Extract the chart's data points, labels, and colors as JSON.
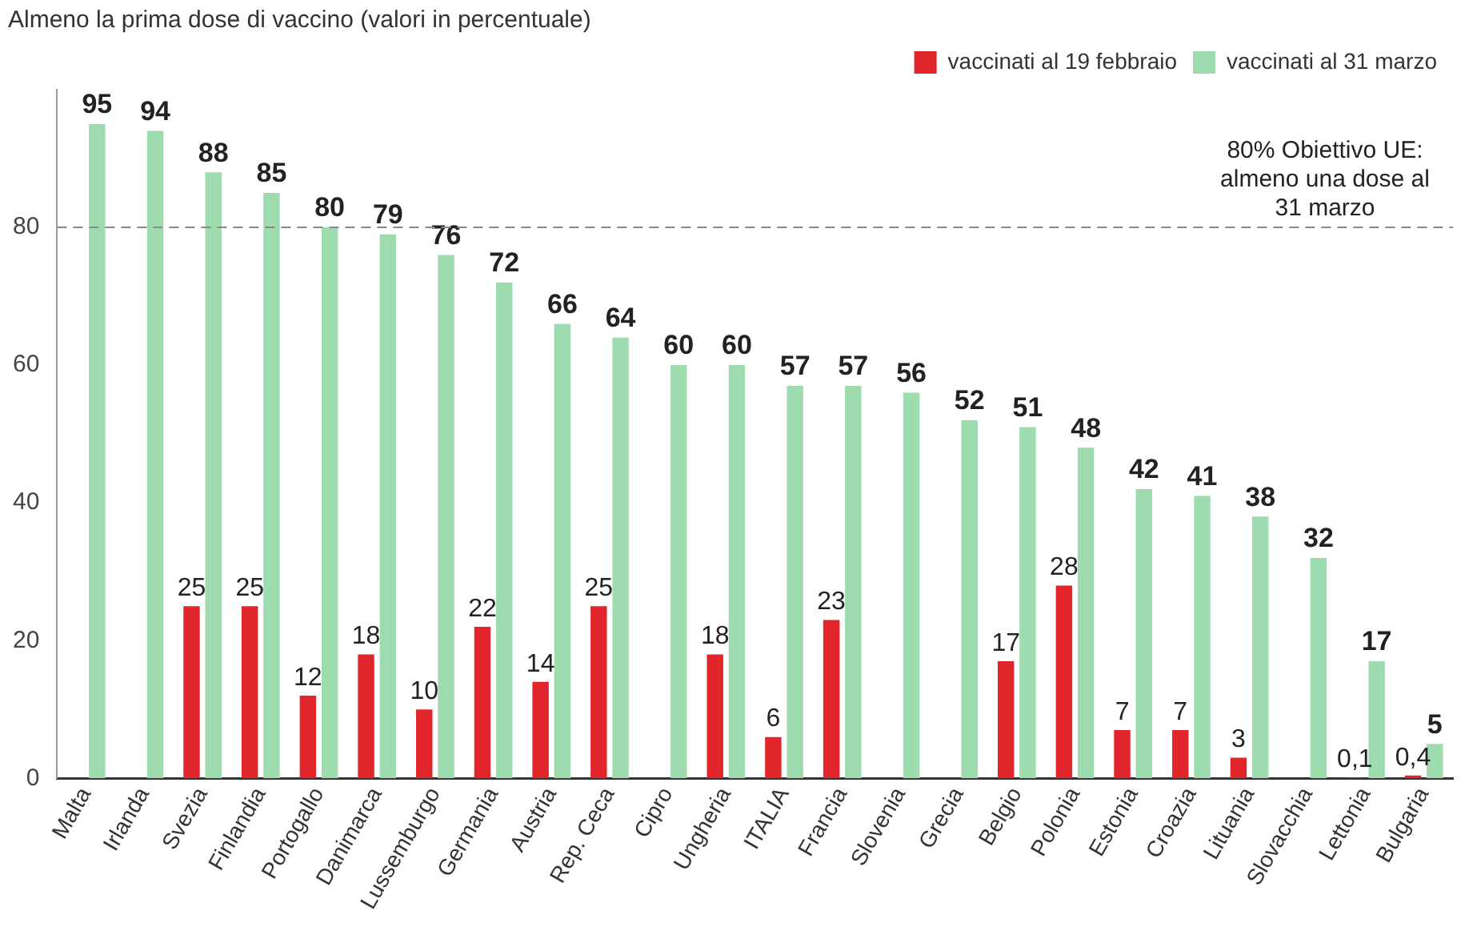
{
  "chart_data": {
    "type": "bar",
    "subtitle": "Almeno la prima dose di vaccino (valori in percentuale)",
    "categories": [
      "Malta",
      "Irlanda",
      "Svezia",
      "Finlandia",
      "Portogallo",
      "Danimarca",
      "Lussemburgo",
      "Germania",
      "Austria",
      "Rep. Ceca",
      "Cipro",
      "Ungheria",
      "ITALIA",
      "Francia",
      "Slovenia",
      "Grecia",
      "Belgio",
      "Polonia",
      "Estonia",
      "Croazia",
      "Lituania",
      "Slovacchia",
      "Lettonia",
      "Bulgaria"
    ],
    "series": [
      {
        "name": "vaccinati al 19 febbraio",
        "color": "#e0262a",
        "values": [
          null,
          null,
          25,
          25,
          12,
          18,
          10,
          22,
          14,
          25,
          null,
          18,
          6,
          23,
          null,
          null,
          17,
          28,
          7,
          7,
          3,
          null,
          0.1,
          0.4
        ],
        "value_labels": [
          null,
          null,
          "25",
          "25",
          "12",
          "18",
          "10",
          "22",
          "14",
          "25",
          null,
          "18",
          "6",
          "23",
          null,
          null,
          "17",
          "28",
          "7",
          "7",
          "3",
          null,
          "0,1",
          "0,4"
        ]
      },
      {
        "name": "vaccinati al 31 marzo",
        "color": "#9edcb0",
        "values": [
          95,
          94,
          88,
          85,
          80,
          79,
          76,
          72,
          66,
          64,
          60,
          60,
          57,
          57,
          56,
          52,
          51,
          48,
          42,
          41,
          38,
          32,
          17,
          5
        ],
        "value_labels": [
          "95",
          "94",
          "88",
          "85",
          "80",
          "79",
          "76",
          "72",
          "66",
          "64",
          "60",
          "60",
          "57",
          "57",
          "56",
          "52",
          "51",
          "48",
          "42",
          "41",
          "38",
          "32",
          "17",
          "5"
        ]
      }
    ],
    "ylim": [
      0,
      100
    ],
    "yticks": [
      0,
      20,
      40,
      60,
      80
    ],
    "grid": false,
    "legend": "top right",
    "ref_lines": [
      {
        "axis": "y",
        "value": 80,
        "label": "80% Obiettivo UE: almeno una dose al 31 marzo",
        "line_style": "dashed",
        "color": "#888888"
      }
    ]
  }
}
